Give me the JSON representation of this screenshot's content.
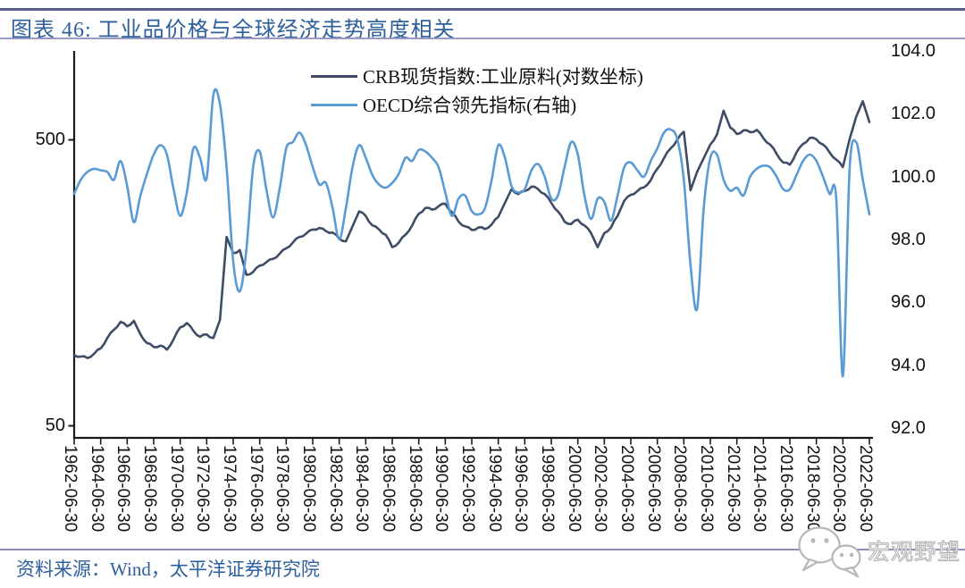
{
  "title": "图表 46:  工业品价格与全球经济走势高度相关",
  "source": "资料来源：Wind，太平洋证券研究院",
  "watermark": "宏观野望",
  "legend": [
    {
      "label": "CRB现货指数:工业原料(对数坐标)",
      "color": "#3f4c66"
    },
    {
      "label": "OECD综合领先指标(右轴)",
      "color": "#5b9bd5"
    }
  ],
  "chart_data": {
    "type": "line",
    "title": "工业品价格与全球经济走势高度相关",
    "x_ticks": [
      "1962-06-30",
      "1964-06-30",
      "1966-06-30",
      "1968-06-30",
      "1970-06-30",
      "1972-06-30",
      "1974-06-30",
      "1976-06-30",
      "1978-06-30",
      "1980-06-30",
      "1982-06-30",
      "1984-06-30",
      "1986-06-30",
      "1988-06-30",
      "1990-06-30",
      "1992-06-30",
      "1994-06-30",
      "1996-06-30",
      "1998-06-30",
      "2000-06-30",
      "2002-06-30",
      "2004-06-30",
      "2006-06-30",
      "2008-06-30",
      "2010-06-30",
      "2012-06-30",
      "2014-06-30",
      "2016-06-30",
      "2018-06-30",
      "2020-06-30",
      "2022-06-30"
    ],
    "left_axis": {
      "scale": "log",
      "tick_labels": [
        "500",
        "50"
      ],
      "tick_values": [
        500,
        50
      ]
    },
    "right_axis": {
      "tick_labels": [
        "104.0",
        "102.0",
        "100.0",
        "98.0",
        "96.0",
        "94.0",
        "92.0"
      ],
      "tick_values": [
        104,
        102,
        100,
        98,
        96,
        94,
        92
      ],
      "range": [
        92,
        104
      ]
    },
    "series": [
      {
        "name": "CRB现货指数:工业原料(对数坐标)",
        "axis": "left",
        "color": "#3f4c66",
        "smooth": false,
        "start_year": 1962.5,
        "step_years": 0.5,
        "values": [
          88,
          87,
          86,
          89,
          93,
          101,
          108,
          115,
          111,
          116,
          104,
          97,
          94,
          95,
          92,
          100,
          110,
          114,
          107,
          102,
          104,
          101,
          117,
          228,
          200,
          205,
          168,
          172,
          181,
          186,
          191,
          199,
          208,
          218,
          228,
          234,
          242,
          245,
          239,
          236,
          225,
          220,
          248,
          280,
          270,
          250,
          242,
          232,
          210,
          218,
          232,
          250,
          275,
          288,
          284,
          292,
          298,
          278,
          258,
          248,
          241,
          246,
          243,
          252,
          268,
          300,
          335,
          322,
          330,
          342,
          335,
          322,
          300,
          280,
          258,
          253,
          262,
          250,
          235,
          210,
          235,
          246,
          270,
          305,
          320,
          330,
          340,
          360,
          395,
          430,
          465,
          498,
          532,
          332,
          385,
          430,
          480,
          520,
          630,
          550,
          522,
          538,
          530,
          540,
          505,
          480,
          445,
          415,
          408,
          450,
          482,
          506,
          500,
          480,
          450,
          425,
          400,
          500,
          600,
          680,
          575
        ]
      },
      {
        "name": "OECD综合领先指标(右轴)",
        "axis": "right",
        "color": "#5b9bd5",
        "smooth": true,
        "start_year": 1962.5,
        "step_years": 0.5,
        "values": [
          99.45,
          99.9,
          100.15,
          100.25,
          100.2,
          100.15,
          99.9,
          100.5,
          99.7,
          98.55,
          99.4,
          100.1,
          100.7,
          101.0,
          100.7,
          99.6,
          98.75,
          99.5,
          100.9,
          100.6,
          99.95,
          102.6,
          102.3,
          100.3,
          97.3,
          96.35,
          97.7,
          100.3,
          100.8,
          99.6,
          98.7,
          99.6,
          100.9,
          101.1,
          101.4,
          101.0,
          100.3,
          99.75,
          99.8,
          99.0,
          98.0,
          99.0,
          100.3,
          101.0,
          100.6,
          100.05,
          99.75,
          99.65,
          99.8,
          100.1,
          100.6,
          100.5,
          100.85,
          100.8,
          100.6,
          100.3,
          99.5,
          98.75,
          99.3,
          99.4,
          98.9,
          98.8,
          99.0,
          99.9,
          101.0,
          100.6,
          99.7,
          99.5,
          99.6,
          100.2,
          100.4,
          100.0,
          99.3,
          99.4,
          100.3,
          101.1,
          100.7,
          99.4,
          98.65,
          99.3,
          99.2,
          98.6,
          99.4,
          100.3,
          100.45,
          100.2,
          100.0,
          100.5,
          100.9,
          101.4,
          101.5,
          101.2,
          99.9,
          97.2,
          95.8,
          99.0,
          100.6,
          100.7,
          99.9,
          99.55,
          99.65,
          99.4,
          100.0,
          100.25,
          100.35,
          100.3,
          100.0,
          99.6,
          99.6,
          100.05,
          100.5,
          100.7,
          100.5,
          100.0,
          99.45,
          99.3,
          93.65,
          100.2,
          101.1,
          99.9,
          98.8
        ]
      }
    ]
  }
}
